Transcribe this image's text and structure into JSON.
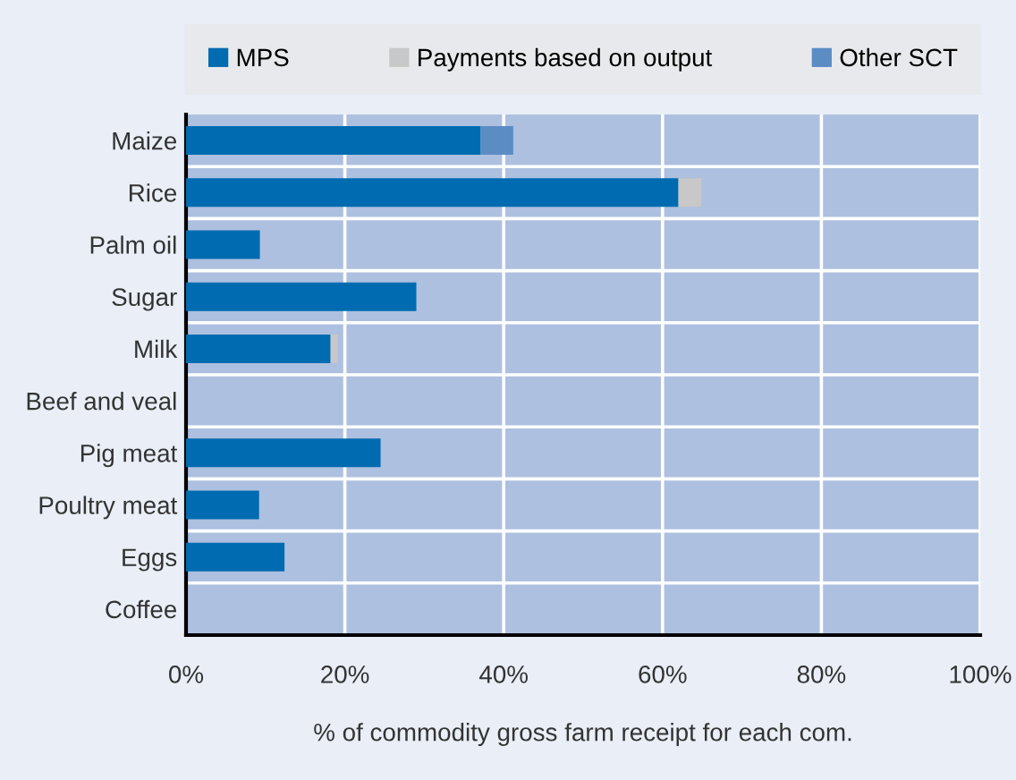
{
  "chart_data": {
    "type": "bar",
    "orientation": "horizontal",
    "stacked": true,
    "xlabel": "% of commodity gross farm receipt for each com.",
    "categories": [
      "Maize",
      "Rice",
      "Palm oil",
      "Sugar",
      "Milk",
      "Beef and veal",
      "Pig meat",
      "Poultry meat",
      "Eggs",
      "Coffee"
    ],
    "series": [
      {
        "name": "MPS",
        "color": "#006bb0",
        "values": [
          37.1,
          62.0,
          9.3,
          29.0,
          18.2,
          0,
          24.5,
          9.2,
          12.4,
          0
        ]
      },
      {
        "name": "Payments based on output",
        "color": "#c8c8c8",
        "values": [
          0,
          2.9,
          0,
          0,
          0.9,
          0,
          0,
          0,
          0,
          0
        ]
      },
      {
        "name": "Other SCT",
        "color": "#5b8cc4",
        "values": [
          4.1,
          0,
          0,
          0,
          0,
          0,
          0,
          0,
          0,
          0
        ]
      }
    ],
    "xlim": [
      0,
      100
    ],
    "xticks": [
      {
        "value": 0,
        "label": "0%"
      },
      {
        "value": 20,
        "label": "20%"
      },
      {
        "value": 40,
        "label": "40%"
      },
      {
        "value": 60,
        "label": "60%"
      },
      {
        "value": 80,
        "label": "80%"
      },
      {
        "value": 100,
        "label": "100%"
      }
    ],
    "grid": "x",
    "legend": "top"
  }
}
